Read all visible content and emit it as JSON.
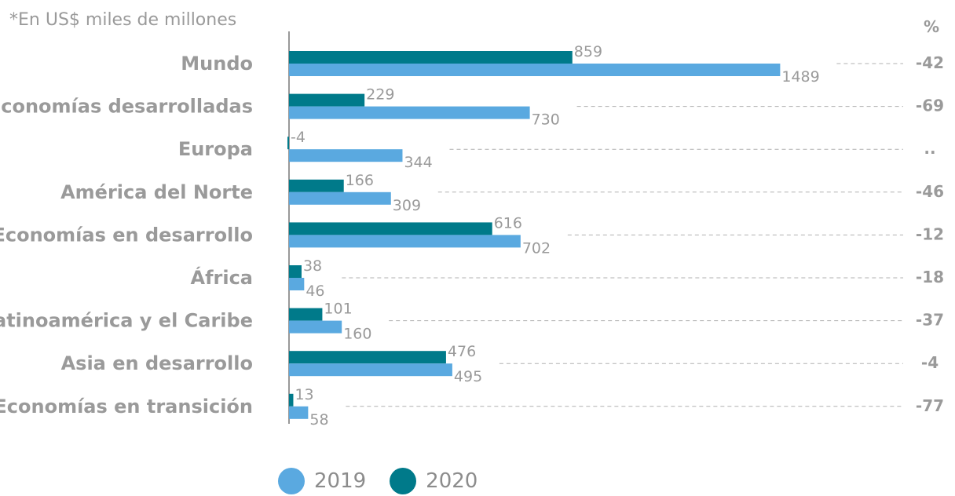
{
  "unit_note": "*En US$ miles de millones",
  "pct_header": "%",
  "colors": {
    "y2019": "#5aa9e0",
    "y2020": "#007a8a",
    "text": "#9a9a9a",
    "axis": "#555555",
    "leader": "#b0b0b0"
  },
  "chart_data": {
    "type": "bar",
    "orientation": "horizontal",
    "categories": [
      "Mundo",
      "Economías desarrolladas",
      "Europa",
      "América del Norte",
      "Economías en desarrollo",
      "África",
      "Latinoamérica y el Caribe",
      "Asia en desarrollo",
      "Economías en transición"
    ],
    "series": [
      {
        "name": "2020",
        "values": [
          859,
          229,
          -4,
          166,
          616,
          38,
          101,
          476,
          13
        ]
      },
      {
        "name": "2019",
        "values": [
          1489,
          730,
          344,
          309,
          702,
          46,
          160,
          495,
          58
        ]
      }
    ],
    "pct_change": [
      "-42",
      "-69",
      "..",
      "-46",
      "-12",
      "-18",
      "-37",
      "-4",
      "-77"
    ],
    "legend": [
      "2019",
      "2020"
    ],
    "legend_position": "bottom"
  }
}
